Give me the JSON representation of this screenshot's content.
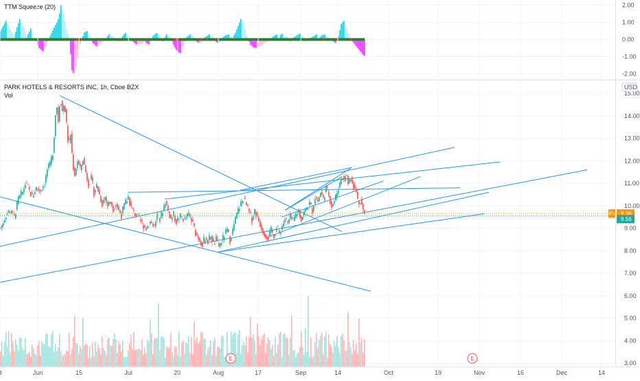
{
  "indicator": {
    "name": "TTM Squeeze (20)",
    "y_ticks": [
      "2.00",
      "1.00",
      "0.00",
      "-1.00",
      "-2.00"
    ],
    "y_values": [
      2,
      1,
      0,
      -1,
      -2
    ],
    "ylim": [
      -2.15,
      2.15
    ],
    "colors": {
      "pos_strong": "#26c6da",
      "pos_weak": "#b2ebf2",
      "neg_strong": "#e040fb",
      "neg_weak": "#f8bbd0",
      "zero_line": "#2e7d32",
      "squeeze_dot": "#e53935"
    },
    "histogram_points": [
      [
        0,
        0.5
      ],
      [
        8,
        1.1
      ],
      [
        14,
        0.6
      ],
      [
        20,
        0.2
      ],
      [
        28,
        1.2
      ],
      [
        34,
        0.7
      ],
      [
        38,
        0.2
      ],
      [
        40,
        0.3
      ],
      [
        44,
        0.65
      ],
      [
        48,
        0.1
      ],
      [
        52,
        -0.1
      ],
      [
        56,
        -0.5
      ],
      [
        62,
        -0.7
      ],
      [
        67,
        -0.3
      ],
      [
        72,
        0.2
      ],
      [
        78,
        0.7
      ],
      [
        82,
        1.0
      ],
      [
        85,
        1.3
      ],
      [
        88,
        2.0
      ],
      [
        92,
        1.5
      ],
      [
        96,
        0.6
      ],
      [
        100,
        0.1
      ],
      [
        104,
        -1.8
      ],
      [
        107,
        -2.05
      ],
      [
        110,
        -1.6
      ],
      [
        114,
        -0.6
      ],
      [
        117,
        -0.1
      ],
      [
        122,
        0.4
      ],
      [
        126,
        0.5
      ],
      [
        130,
        0.2
      ],
      [
        134,
        -0.2
      ],
      [
        140,
        -0.4
      ],
      [
        145,
        -0.25
      ],
      [
        150,
        -0.1
      ],
      [
        154,
        0.1
      ],
      [
        158,
        0.3
      ],
      [
        162,
        0.2
      ],
      [
        166,
        0.1
      ],
      [
        172,
        -0.1
      ],
      [
        176,
        0.1
      ],
      [
        182,
        0.4
      ],
      [
        187,
        0.25
      ],
      [
        192,
        -0.1
      ],
      [
        198,
        -0.3
      ],
      [
        204,
        -0.25
      ],
      [
        210,
        -0.15
      ],
      [
        216,
        -0.3
      ],
      [
        222,
        0.2
      ],
      [
        227,
        0.4
      ],
      [
        232,
        0.25
      ],
      [
        236,
        -0.1
      ],
      [
        242,
        0.3
      ],
      [
        247,
        0.15
      ],
      [
        252,
        -0.3
      ],
      [
        257,
        -0.7
      ],
      [
        262,
        -0.8
      ],
      [
        266,
        -0.4
      ],
      [
        270,
        0.1
      ],
      [
        276,
        0.3
      ],
      [
        282,
        0.1
      ],
      [
        287,
        -0.2
      ],
      [
        292,
        -0.15
      ],
      [
        298,
        0.15
      ],
      [
        304,
        0.3
      ],
      [
        310,
        0.1
      ],
      [
        315,
        -0.2
      ],
      [
        320,
        -0.1
      ],
      [
        325,
        0.2
      ],
      [
        332,
        0.3
      ],
      [
        338,
        0.1
      ],
      [
        342,
        0.4
      ],
      [
        346,
        0.8
      ],
      [
        350,
        1.2
      ],
      [
        354,
        1.0
      ],
      [
        357,
        0.4
      ],
      [
        360,
        0.05
      ],
      [
        364,
        -0.3
      ],
      [
        368,
        -0.45
      ],
      [
        372,
        -0.5
      ],
      [
        376,
        -0.45
      ],
      [
        380,
        -0.35
      ],
      [
        386,
        -0.15
      ],
      [
        392,
        -0.1
      ],
      [
        396,
        0.15
      ],
      [
        402,
        0.3
      ],
      [
        406,
        0.2
      ],
      [
        410,
        0.35
      ],
      [
        414,
        0.2
      ],
      [
        418,
        0.1
      ],
      [
        422,
        -0.1
      ],
      [
        426,
        0.1
      ],
      [
        432,
        0.25
      ],
      [
        436,
        0.35
      ],
      [
        440,
        0.15
      ],
      [
        444,
        -0.1
      ],
      [
        448,
        -0.05
      ],
      [
        452,
        0.1
      ],
      [
        456,
        0.2
      ],
      [
        460,
        0.3
      ],
      [
        464,
        0.1
      ],
      [
        468,
        0.25
      ],
      [
        472,
        0.3
      ],
      [
        476,
        0.15
      ],
      [
        480,
        0.05
      ],
      [
        484,
        -0.1
      ],
      [
        488,
        -0.2
      ],
      [
        492,
        0.2
      ],
      [
        496,
        0.9
      ],
      [
        500,
        1.1
      ],
      [
        504,
        0.6
      ],
      [
        508,
        0.2
      ],
      [
        512,
        -0.1
      ],
      [
        516,
        -0.3
      ],
      [
        520,
        -0.5
      ],
      [
        524,
        -0.7
      ],
      [
        528,
        -0.9
      ],
      [
        531,
        -1.0
      ]
    ],
    "squeeze_dots_x": [
      110,
      118,
      254,
      256,
      258,
      292,
      300,
      470,
      490,
      510
    ]
  },
  "chart_data": {
    "type": "line",
    "title": "PARK HOTELS & RESORTS INC, 1h, Cboe BZX",
    "subtitle": "Vol",
    "currency": "USD",
    "ylim": [
      2.85,
      15.55
    ],
    "y_ticks": [
      "15.00",
      "14.00",
      "13.00",
      "12.00",
      "11.00",
      "10.00",
      "9.00",
      "8.00",
      "7.00",
      "6.00",
      "5.00",
      "4.00",
      "3.00"
    ],
    "y_tick_values": [
      15,
      14,
      13,
      12,
      11,
      10,
      9,
      8,
      7,
      6,
      5,
      4,
      3
    ],
    "x_ticks": [
      "8",
      "Jun",
      "15",
      "Jul",
      "20",
      "Aug",
      "17",
      "Sep",
      "14",
      "Oct",
      "19",
      "Nov",
      "16",
      "Dec",
      "14"
    ],
    "x_tick_positions": [
      0,
      55,
      115,
      187,
      258,
      318,
      376,
      438,
      492,
      566,
      638,
      698,
      758,
      818,
      876
    ],
    "price_series": [
      [
        0,
        9.0
      ],
      [
        8,
        9.6
      ],
      [
        14,
        9.8
      ],
      [
        20,
        9.5
      ],
      [
        26,
        10.3
      ],
      [
        32,
        10.6
      ],
      [
        36,
        11.0
      ],
      [
        40,
        10.8
      ],
      [
        46,
        10.4
      ],
      [
        52,
        10.8
      ],
      [
        58,
        10.7
      ],
      [
        64,
        11.0
      ],
      [
        68,
        11.6
      ],
      [
        72,
        11.8
      ],
      [
        76,
        12.4
      ],
      [
        79,
        13.5
      ],
      [
        81,
        14.7
      ],
      [
        84,
        13.8
      ],
      [
        87,
        14.9
      ],
      [
        90,
        14.2
      ],
      [
        93,
        14.6
      ],
      [
        96,
        13.6
      ],
      [
        99,
        12.6
      ],
      [
        102,
        13.2
      ],
      [
        105,
        11.9
      ],
      [
        108,
        11.4
      ],
      [
        112,
        12.0
      ],
      [
        116,
        11.6
      ],
      [
        120,
        12.1
      ],
      [
        124,
        11.5
      ],
      [
        128,
        11.0
      ],
      [
        132,
        11.2
      ],
      [
        136,
        10.6
      ],
      [
        140,
        10.9
      ],
      [
        144,
        10.5
      ],
      [
        148,
        10.1
      ],
      [
        152,
        10.4
      ],
      [
        156,
        10.0
      ],
      [
        160,
        10.2
      ],
      [
        164,
        9.9
      ],
      [
        168,
        10.1
      ],
      [
        172,
        9.8
      ],
      [
        176,
        9.6
      ],
      [
        180,
        10.0
      ],
      [
        186,
        10.4
      ],
      [
        190,
        9.9
      ],
      [
        194,
        9.7
      ],
      [
        200,
        9.5
      ],
      [
        206,
        9.2
      ],
      [
        212,
        9.0
      ],
      [
        218,
        9.3
      ],
      [
        224,
        9.1
      ],
      [
        228,
        9.6
      ],
      [
        232,
        9.4
      ],
      [
        236,
        9.8
      ],
      [
        240,
        10.2
      ],
      [
        244,
        9.8
      ],
      [
        248,
        9.4
      ],
      [
        252,
        9.6
      ],
      [
        256,
        9.3
      ],
      [
        262,
        9.5
      ],
      [
        268,
        9.4
      ],
      [
        274,
        9.6
      ],
      [
        280,
        9.2
      ],
      [
        284,
        8.8
      ],
      [
        290,
        8.5
      ],
      [
        294,
        8.3
      ],
      [
        298,
        8.6
      ],
      [
        302,
        8.4
      ],
      [
        306,
        8.7
      ],
      [
        310,
        8.3
      ],
      [
        314,
        8.5
      ],
      [
        318,
        8.2
      ],
      [
        322,
        8.4
      ],
      [
        326,
        8.7
      ],
      [
        330,
        8.9
      ],
      [
        334,
        8.5
      ],
      [
        338,
        8.9
      ],
      [
        342,
        9.4
      ],
      [
        346,
        9.8
      ],
      [
        350,
        10.1
      ],
      [
        354,
        10.3
      ],
      [
        358,
        10.0
      ],
      [
        362,
        9.7
      ],
      [
        366,
        9.4
      ],
      [
        370,
        9.8
      ],
      [
        374,
        9.5
      ],
      [
        378,
        9.2
      ],
      [
        382,
        8.9
      ],
      [
        386,
        8.7
      ],
      [
        390,
        8.6
      ],
      [
        394,
        8.9
      ],
      [
        398,
        8.7
      ],
      [
        402,
        9.0
      ],
      [
        406,
        8.8
      ],
      [
        410,
        9.1
      ],
      [
        414,
        9.4
      ],
      [
        418,
        9.2
      ],
      [
        422,
        9.5
      ],
      [
        426,
        9.3
      ],
      [
        430,
        9.6
      ],
      [
        434,
        9.8
      ],
      [
        438,
        9.4
      ],
      [
        442,
        9.7
      ],
      [
        446,
        9.9
      ],
      [
        450,
        10.1
      ],
      [
        454,
        9.8
      ],
      [
        458,
        10.4
      ],
      [
        462,
        10.2
      ],
      [
        466,
        10.6
      ],
      [
        470,
        10.3
      ],
      [
        474,
        10.8
      ],
      [
        478,
        10.5
      ],
      [
        482,
        10.0
      ],
      [
        486,
        10.2
      ],
      [
        490,
        10.6
      ],
      [
        494,
        11.0
      ],
      [
        497,
        11.4
      ],
      [
        500,
        11.1
      ],
      [
        503,
        11.5
      ],
      [
        506,
        11.0
      ],
      [
        510,
        11.3
      ],
      [
        514,
        10.9
      ],
      [
        518,
        10.6
      ],
      [
        521,
        10.1
      ],
      [
        524,
        10.3
      ],
      [
        527,
        9.9
      ],
      [
        530,
        9.6
      ]
    ],
    "trendlines": [
      {
        "x1": 0,
        "y1": 10.4,
        "x2": 540,
        "y2": 6.2
      },
      {
        "x1": 87,
        "y1": 14.9,
        "x2": 498,
        "y2": 8.85
      },
      {
        "x1": 0,
        "y1": 8.2,
        "x2": 662,
        "y2": 12.6
      },
      {
        "x1": 0,
        "y1": 6.6,
        "x2": 855,
        "y2": 11.6
      },
      {
        "x1": 186,
        "y1": 10.6,
        "x2": 670,
        "y2": 10.8
      },
      {
        "x1": 240,
        "y1": 10.3,
        "x2": 728,
        "y2": 11.95
      },
      {
        "x1": 318,
        "y1": 7.95,
        "x2": 706,
        "y2": 9.65
      },
      {
        "x1": 318,
        "y1": 7.95,
        "x2": 712,
        "y2": 10.6
      },
      {
        "x1": 390,
        "y1": 8.6,
        "x2": 612,
        "y2": 11.3
      },
      {
        "x1": 410,
        "y1": 9.5,
        "x2": 558,
        "y2": 11.1
      },
      {
        "x1": 350,
        "y1": 10.7,
        "x2": 512,
        "y2": 11.7
      },
      {
        "x1": 415,
        "y1": 9.8,
        "x2": 512,
        "y2": 11.7
      },
      {
        "x1": 415,
        "y1": 9.8,
        "x2": 498,
        "y2": 11.3
      }
    ],
    "earnings_markers": [
      {
        "x": 336,
        "label": "E"
      },
      {
        "x": 688,
        "label": "E"
      }
    ],
    "price_badges": [
      {
        "label": "Pre",
        "value": "9.66",
        "price": 9.66,
        "color": "#ff9800"
      },
      {
        "label": "",
        "value": "9.56",
        "price": 9.56,
        "color": "#26a69a"
      }
    ],
    "volume": {
      "ylim": [
        0,
        6.2
      ],
      "up_color": "#26a69a",
      "down_color": "#ef5350"
    },
    "grid": true
  }
}
